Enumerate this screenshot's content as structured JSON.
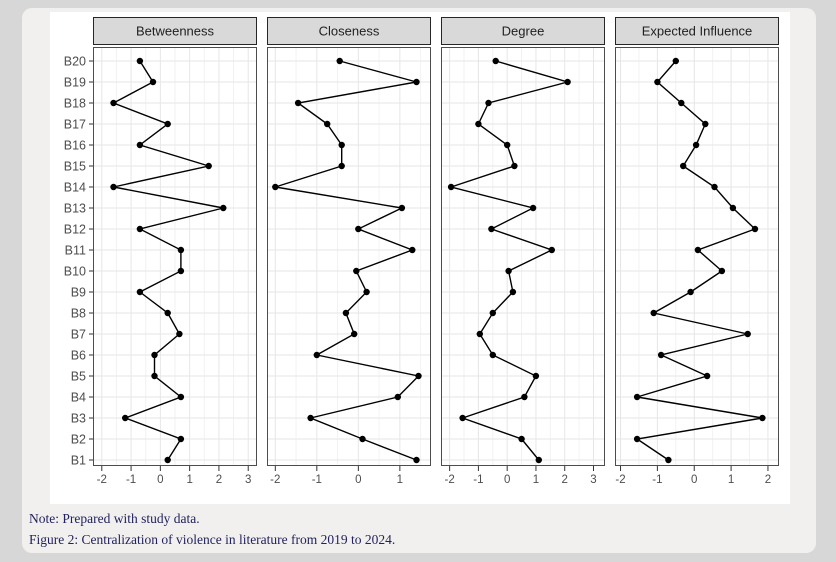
{
  "caption": {
    "note": "Note: Prepared with study data.",
    "figure": "Figure 2: Centralization of violence in literature from 2019 to 2024."
  },
  "colors": {
    "page_bg": "#d7d7d7",
    "card_bg": "#f1f0ee",
    "figure_bg": "#ffffff",
    "strip_fill": "#d9d9d9",
    "strip_border": "#262626",
    "strip_text": "#1f1f1f",
    "panel_border": "#4d4d4d",
    "grid_major": "#e6e6e6",
    "grid_minor": "#f2f2f2",
    "axis_text": "#4d4d4d",
    "tick_mark": "#333333",
    "data_color": "#000000",
    "caption_color": "#22225d"
  },
  "chart_data": {
    "type": "line",
    "style": "faceted horizontal dot-line centrality plot, points connected vertically across categories",
    "title": "",
    "ylabel": "",
    "xlabel": "",
    "grid": "on",
    "legend": "none",
    "categories": [
      "B1",
      "B2",
      "B3",
      "B4",
      "B5",
      "B6",
      "B7",
      "B8",
      "B9",
      "B10",
      "B11",
      "B12",
      "B13",
      "B14",
      "B15",
      "B16",
      "B17",
      "B18",
      "B19",
      "B20"
    ],
    "category_display_order_top_to_bottom": [
      "B20",
      "B19",
      "B18",
      "B17",
      "B16",
      "B15",
      "B14",
      "B13",
      "B12",
      "B11",
      "B10",
      "B9",
      "B8",
      "B7",
      "B6",
      "B5",
      "B4",
      "B3",
      "B2",
      "B1"
    ],
    "panels": [
      {
        "title": "Betweenness",
        "x_ticks": [
          -2,
          -1,
          0,
          1,
          2,
          3
        ],
        "xlim": [
          -2.3,
          3.3
        ],
        "values": [
          0.25,
          0.7,
          -1.2,
          0.7,
          -0.2,
          -0.2,
          0.65,
          0.25,
          -0.7,
          0.7,
          0.7,
          -0.7,
          2.15,
          -1.6,
          1.65,
          -0.7,
          0.25,
          -1.6,
          -0.25,
          -0.7
        ]
      },
      {
        "title": "Closeness",
        "x_ticks": [
          -2,
          -1,
          0,
          1
        ],
        "xlim": [
          -2.2,
          1.75
        ],
        "values": [
          1.4,
          0.1,
          -1.15,
          0.95,
          1.45,
          -1.0,
          -0.1,
          -0.3,
          0.2,
          -0.05,
          1.3,
          0.0,
          1.05,
          -2.0,
          -0.4,
          -0.4,
          -0.75,
          -1.45,
          1.4,
          -0.45
        ]
      },
      {
        "title": "Degree",
        "x_ticks": [
          -2,
          -1,
          0,
          1,
          2,
          3
        ],
        "xlim": [
          -2.3,
          3.4
        ],
        "values": [
          1.1,
          0.5,
          -1.55,
          0.6,
          1.0,
          -0.5,
          -0.95,
          -0.5,
          0.2,
          0.05,
          1.55,
          -0.55,
          0.9,
          -1.95,
          0.25,
          0.0,
          -1.0,
          -0.65,
          2.1,
          -0.4
        ]
      },
      {
        "title": "Expected Influence",
        "x_ticks": [
          -2,
          -1,
          0,
          1,
          2
        ],
        "xlim": [
          -2.15,
          2.3
        ],
        "values": [
          -0.7,
          -1.55,
          1.85,
          -1.55,
          0.35,
          -0.9,
          1.45,
          -1.1,
          -0.1,
          0.75,
          0.1,
          1.65,
          1.05,
          0.55,
          -0.3,
          0.05,
          0.3,
          -0.35,
          -1.0,
          -0.5
        ]
      }
    ]
  }
}
